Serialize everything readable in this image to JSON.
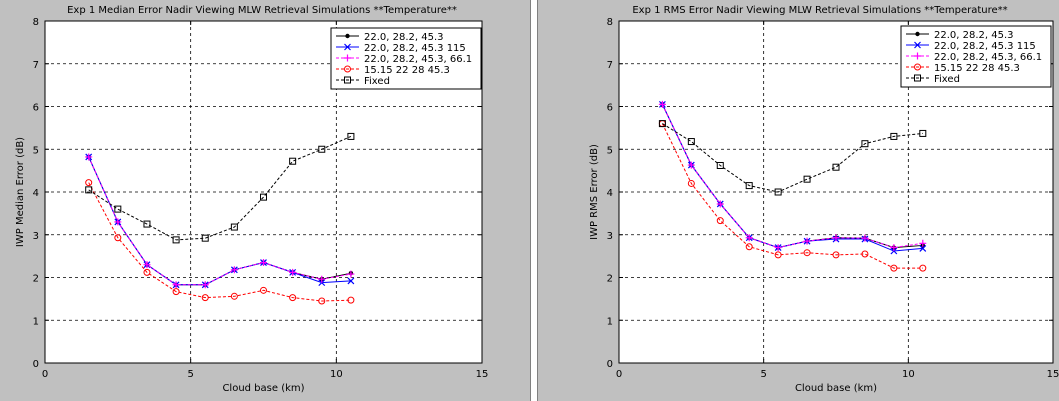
{
  "chart_data": [
    {
      "type": "line",
      "title": "Exp 1 Median Error Nadir Viewing MLW Retrieval Simulations **Temperature**",
      "xlabel": "Cloud base (km)",
      "ylabel": "IWP Median Error (dB)",
      "xlim": [
        0,
        15
      ],
      "ylim": [
        0,
        8
      ],
      "xticks": [
        "0",
        "5",
        "10",
        "15"
      ],
      "yticks": [
        "0",
        "1",
        "2",
        "3",
        "4",
        "5",
        "6",
        "7",
        "8"
      ],
      "grid": true,
      "legend_position": "top-right",
      "x": [
        1.5,
        2.5,
        3.5,
        4.5,
        5.5,
        6.5,
        7.5,
        8.5,
        9.5,
        10.5
      ],
      "series": [
        {
          "name": "22.0, 28.2, 45.3",
          "color": "#000000",
          "marker": "dot",
          "dash": "solid",
          "values": [
            4.82,
            3.3,
            2.3,
            1.83,
            1.83,
            2.18,
            2.35,
            2.12,
            1.96,
            2.1
          ]
        },
        {
          "name": "22.0, 28.2, 45.3 115",
          "color": "#0000ff",
          "marker": "x",
          "dash": "solid",
          "values": [
            4.82,
            3.3,
            2.3,
            1.83,
            1.83,
            2.18,
            2.35,
            2.12,
            1.88,
            1.92
          ]
        },
        {
          "name": "22.0, 28.2, 45.3, 66.1",
          "color": "#ff00ff",
          "marker": "plus",
          "dash": "dashed",
          "values": [
            4.82,
            3.3,
            2.3,
            1.83,
            1.83,
            2.18,
            2.35,
            2.12,
            1.96,
            2.08
          ]
        },
        {
          "name": "15.15 22 28 45.3",
          "color": "#ff0000",
          "marker": "circle",
          "dash": "dashed",
          "values": [
            4.22,
            2.93,
            2.12,
            1.67,
            1.53,
            1.56,
            1.7,
            1.53,
            1.45,
            1.47
          ]
        },
        {
          "name": "Fixed",
          "color": "#000000",
          "marker": "square",
          "dash": "dashed",
          "values": [
            4.05,
            3.6,
            3.25,
            2.88,
            2.92,
            3.18,
            3.88,
            4.72,
            5.0,
            5.3
          ]
        }
      ]
    },
    {
      "type": "line",
      "title": "Exp 1 RMS Error Nadir Viewing MLW Retrieval Simulations **Temperature**",
      "xlabel": "Cloud base (km)",
      "ylabel": "IWP RMS Error (dB)",
      "xlim": [
        0,
        15
      ],
      "ylim": [
        0,
        8
      ],
      "xticks": [
        "0",
        "5",
        "10",
        "15"
      ],
      "yticks": [
        "0",
        "1",
        "2",
        "3",
        "4",
        "5",
        "6",
        "7",
        "8"
      ],
      "grid": true,
      "legend_position": "top-right",
      "x": [
        1.5,
        2.5,
        3.5,
        4.5,
        5.5,
        6.5,
        7.5,
        8.5,
        9.5,
        10.5
      ],
      "series": [
        {
          "name": "22.0, 28.2, 45.3",
          "color": "#000000",
          "marker": "dot",
          "dash": "solid",
          "values": [
            6.05,
            4.63,
            3.72,
            2.93,
            2.7,
            2.85,
            2.93,
            2.92,
            2.7,
            2.75
          ]
        },
        {
          "name": "22.0, 28.2, 45.3 115",
          "color": "#0000ff",
          "marker": "x",
          "dash": "solid",
          "values": [
            6.05,
            4.63,
            3.72,
            2.93,
            2.7,
            2.85,
            2.9,
            2.9,
            2.62,
            2.68
          ]
        },
        {
          "name": "22.0, 28.2, 45.3, 66.1",
          "color": "#ff00ff",
          "marker": "plus",
          "dash": "dashed",
          "values": [
            6.05,
            4.63,
            3.72,
            2.93,
            2.7,
            2.85,
            2.93,
            2.92,
            2.7,
            2.8
          ]
        },
        {
          "name": "15.15 22 28 45.3",
          "color": "#ff0000",
          "marker": "circle",
          "dash": "dashed",
          "values": [
            5.6,
            4.2,
            3.33,
            2.72,
            2.53,
            2.58,
            2.53,
            2.55,
            2.22,
            2.22
          ]
        },
        {
          "name": "Fixed",
          "color": "#000000",
          "marker": "square",
          "dash": "dashed",
          "values": [
            5.6,
            5.18,
            4.62,
            4.15,
            4.0,
            4.3,
            4.58,
            5.13,
            5.3,
            5.37
          ]
        }
      ]
    }
  ]
}
